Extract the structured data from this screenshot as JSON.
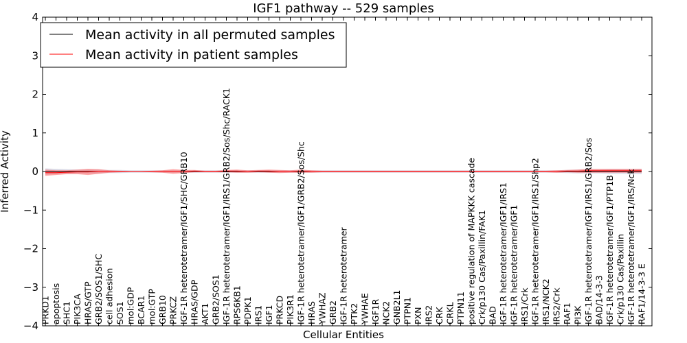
{
  "chart_data": {
    "type": "line",
    "title": "IGF1 pathway -- 529 samples",
    "xlabel": "Cellular Entities",
    "ylabel": "Inferred Activity",
    "ylim": [
      -4,
      4
    ],
    "yticks": [
      -4,
      -3,
      -2,
      -1,
      0,
      1,
      2,
      3,
      4
    ],
    "grid": false,
    "legend_position": "top-left",
    "categories": [
      "PRKD1",
      "apoptosis",
      "SHC1",
      "PIK3CA",
      "HRAS/GTP",
      "GRB2/SOS1/SHC",
      "cell adhesion",
      "SOS1",
      "mol:GDP",
      "BCAR1",
      "mol:GTP",
      "GRB10",
      "PRKCZ",
      "IGF-1R heterotetramer/IGF1/SHC/GRB10",
      "HRAS/GDP",
      "AKT1",
      "GRB2/SOS1",
      "IGF-1R heterotetramer/IGF1/IRS1/GRB2/Sos/Shc/RACK1",
      "RPS6KB1",
      "PDPK1",
      "IRS1",
      "IGF1",
      "PRKCD",
      "PIK3R1",
      "IGF-1R heterotetramer/IGF1/GRB2/Sos/Shc",
      "HRAS",
      "YWHAZ",
      "GRB2",
      "IGF-1R heterotetramer",
      "PTK2",
      "YWHAE",
      "IGF1R",
      "NCK2",
      "GNB2L1",
      "PTPN1",
      "PXN",
      "IRS2",
      "CRK",
      "CRKL",
      "PTPN11",
      "positive regulation of MAPKKK cascade",
      "Crk/p130 Cas/Paxillin/FAK1",
      "BAD",
      "IGF-1R heterotetramer/IGF1/IRS1",
      "IGF-1R heterotetramer/IGF1",
      "IRS1/Crk",
      "IGF-1R heterotetramer/IGF1/IRS1/Shp2",
      "IRS1/NCK2",
      "IRS2/Crk",
      "RAF1",
      "PI3K",
      "IGF-1R heterotetramer/IGF1/IRS1/GRB2/Sos",
      "BAD/14-3-3",
      "IGF-1R heterotetramer/IGF1/PTP1B",
      "Crk/p130 Cas/Paxillin",
      "IGF-1R heterotetramer/IGF1/IRS/Nck",
      "RAF1/14-3-3 E"
    ],
    "series": [
      {
        "name": "Mean activity in all permuted samples",
        "color": "#000000",
        "band_color": "#9999bb",
        "values": [
          0,
          0,
          0,
          0,
          0,
          0,
          0,
          0,
          0,
          0,
          0,
          0,
          0,
          0,
          0,
          0,
          0,
          0,
          0,
          0,
          0,
          0,
          0,
          0,
          0,
          0,
          0,
          0,
          0,
          0,
          0,
          0,
          0,
          0,
          0,
          0,
          0,
          0,
          0,
          0,
          0,
          0,
          0,
          0,
          0,
          0,
          0,
          0,
          0,
          0,
          0,
          0,
          0,
          0,
          0,
          0,
          0
        ],
        "band": [
          0.08,
          0.07,
          0.06,
          0.05,
          0.05,
          0.05,
          0.04,
          0.04,
          0.03,
          0.03,
          0.03,
          0.03,
          0.03,
          0.03,
          0.03,
          0.03,
          0.03,
          0.03,
          0.03,
          0.03,
          0.03,
          0.03,
          0.03,
          0.03,
          0.03,
          0.03,
          0.03,
          0.03,
          0.03,
          0.03,
          0.03,
          0.03,
          0.03,
          0.03,
          0.03,
          0.03,
          0.03,
          0.03,
          0.03,
          0.03,
          0.03,
          0.03,
          0.03,
          0.03,
          0.03,
          0.03,
          0.03,
          0.03,
          0.03,
          0.04,
          0.05,
          0.05,
          0.05,
          0.06,
          0.06,
          0.06,
          0.07
        ]
      },
      {
        "name": "Mean activity in patient samples",
        "color": "#ff0000",
        "band_color": "#ff4040",
        "values": [
          -0.03,
          -0.03,
          -0.02,
          -0.01,
          -0.01,
          0,
          0,
          0,
          0,
          0,
          0,
          0,
          0,
          0,
          0.01,
          0,
          0,
          0.01,
          0.01,
          0,
          0.01,
          0.01,
          0,
          0,
          0.01,
          0,
          0,
          0,
          0,
          0,
          0,
          0,
          0,
          0,
          0,
          0,
          0,
          0,
          0,
          0,
          0,
          0,
          0,
          0,
          0,
          0,
          0,
          0,
          0,
          0.01,
          0.01,
          0.02,
          0.02,
          0.02,
          0.02,
          0.02,
          0.02
        ],
        "band": [
          0.08,
          0.06,
          0.05,
          0.06,
          0.08,
          0.06,
          0.03,
          0.02,
          0.01,
          0.01,
          0.02,
          0.03,
          0.06,
          0.04,
          0.03,
          0.02,
          0.02,
          0.03,
          0.04,
          0.03,
          0.03,
          0.04,
          0.04,
          0.03,
          0.04,
          0.03,
          0.02,
          0.02,
          0.02,
          0.02,
          0.02,
          0.02,
          0.02,
          0.02,
          0.02,
          0.02,
          0.02,
          0.02,
          0.02,
          0.02,
          0.02,
          0.02,
          0.02,
          0.02,
          0.02,
          0.02,
          0.02,
          0.02,
          0.03,
          0.03,
          0.04,
          0.05,
          0.05,
          0.05,
          0.05,
          0.05,
          0.05
        ]
      }
    ]
  }
}
